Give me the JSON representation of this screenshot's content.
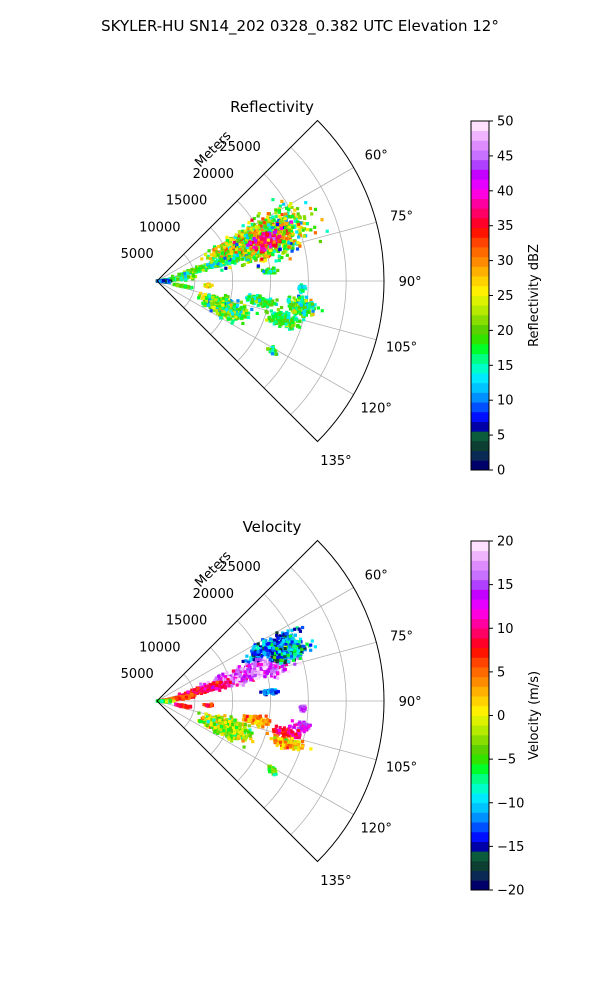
{
  "figure": {
    "suptitle": "SKYLER-HU  SN14_202  0328_0.382 UTC Elevation 12°"
  },
  "colors": {
    "grid": "#b0b0b0",
    "reflectivity_scale": [
      "#00006a",
      "#0a2a55",
      "#0d3e32",
      "#0b5c3d",
      "#0000a8",
      "#0010ff",
      "#0050ff",
      "#0090ff",
      "#00c4ff",
      "#00eaff",
      "#00ffc8",
      "#00ff82",
      "#00ff2a",
      "#30e400",
      "#5ad100",
      "#8add00",
      "#b6ea00",
      "#ddf200",
      "#fff000",
      "#ffd200",
      "#ffb000",
      "#ff8c00",
      "#ff6a00",
      "#ff4300",
      "#ff1400",
      "#ff0028",
      "#ff0064",
      "#ff00a0",
      "#ff00e0",
      "#e600ff",
      "#c400ff",
      "#b040ff",
      "#c870ff",
      "#dc8cff",
      "#f0b4ff",
      "#ffe0ff"
    ],
    "velocity_scale": [
      "#00006a",
      "#0a2a55",
      "#0d3e32",
      "#0b5c3d",
      "#0000a8",
      "#0010ff",
      "#0050ff",
      "#0090ff",
      "#00c4ff",
      "#00eaff",
      "#00ffc8",
      "#00ff82",
      "#00ff2a",
      "#30e400",
      "#5ad100",
      "#8add00",
      "#b6ea00",
      "#ddf200",
      "#fff000",
      "#ffd200",
      "#ffb000",
      "#ff8c00",
      "#ff6a00",
      "#ff4300",
      "#ff1400",
      "#ff0028",
      "#ff0064",
      "#ff00a0",
      "#ff00e0",
      "#e600ff",
      "#c400ff",
      "#b040ff",
      "#c870ff",
      "#dc8cff",
      "#f0b4ff",
      "#ffe0ff"
    ]
  },
  "chart_data": [
    {
      "type": "heatmap",
      "projection": "polar-sector",
      "title": "Reflectivity",
      "radial_label": "Meters",
      "radial_ticks": [
        5000,
        10000,
        15000,
        20000,
        25000
      ],
      "radial_tick_labels": [
        "5000",
        "10000",
        "15000",
        "20000",
        "25000"
      ],
      "rlim": [
        0,
        30000
      ],
      "theta_range_deg": [
        45,
        135
      ],
      "theta_ticks_deg": [
        60,
        75,
        90,
        105,
        120,
        135
      ],
      "theta_tick_labels": [
        "60°",
        "75°",
        "90°",
        "105°",
        "120°",
        "135°"
      ],
      "grid": true,
      "colorbar": {
        "label": "Reflectivity dBZ",
        "range": [
          0,
          50
        ],
        "ticks": [
          0,
          5,
          10,
          15,
          20,
          25,
          30,
          35,
          40,
          45,
          50
        ],
        "tick_labels": [
          "0",
          "5",
          "10",
          "15",
          "20",
          "25",
          "30",
          "35",
          "40",
          "45",
          "50"
        ]
      },
      "echoes": [
        {
          "az": 69,
          "range": 14500,
          "az_width": 14,
          "range_width": 9000,
          "value": 22,
          "spread": 6
        },
        {
          "az": 70,
          "range": 15500,
          "az_width": 5,
          "range_width": 3000,
          "value": 36,
          "spread": 4
        },
        {
          "az": 74,
          "range": 7500,
          "az_width": 4,
          "range_width": 6000,
          "value": 18,
          "spread": 4
        },
        {
          "az": 84,
          "range": 2600,
          "az_width": 5,
          "range_width": 3000,
          "value": 16,
          "spread": 4
        },
        {
          "az": 92,
          "range": 600,
          "az_width": 8,
          "range_width": 1500,
          "value": 8,
          "spread": 4
        },
        {
          "az": 95,
          "range": 6800,
          "az_width": 2,
          "range_width": 800,
          "value": 26,
          "spread": 4
        },
        {
          "az": 85,
          "range": 15000,
          "az_width": 2,
          "range_width": 1500,
          "value": 17,
          "spread": 3
        },
        {
          "az": 111,
          "range": 9700,
          "az_width": 10,
          "range_width": 4500,
          "value": 19,
          "spread": 5
        },
        {
          "az": 101,
          "range": 14000,
          "az_width": 4,
          "range_width": 2500,
          "value": 17,
          "spread": 3
        },
        {
          "az": 100,
          "range": 19500,
          "az_width": 5,
          "range_width": 3000,
          "value": 18,
          "spread": 4
        },
        {
          "az": 107,
          "range": 17500,
          "az_width": 4,
          "range_width": 3500,
          "value": 18,
          "spread": 3
        },
        {
          "az": 121,
          "range": 17800,
          "az_width": 2,
          "range_width": 1000,
          "value": 17,
          "spread": 3
        },
        {
          "az": 93,
          "range": 19300,
          "az_width": 2,
          "range_width": 700,
          "value": 16,
          "spread": 3
        },
        {
          "az": 101,
          "range": 3500,
          "az_width": 3,
          "range_width": 1500,
          "value": 19,
          "spread": 3
        }
      ]
    },
    {
      "type": "heatmap",
      "projection": "polar-sector",
      "title": "Velocity",
      "radial_label": "Meters",
      "radial_ticks": [
        5000,
        10000,
        15000,
        20000,
        25000
      ],
      "radial_tick_labels": [
        "5000",
        "10000",
        "15000",
        "20000",
        "25000"
      ],
      "rlim": [
        0,
        30000
      ],
      "theta_range_deg": [
        45,
        135
      ],
      "theta_ticks_deg": [
        60,
        75,
        90,
        105,
        120,
        135
      ],
      "theta_tick_labels": [
        "60°",
        "75°",
        "90°",
        "105°",
        "120°",
        "135°"
      ],
      "grid": true,
      "colorbar": {
        "label": "Velocity (m/s)",
        "range": [
          -20,
          20
        ],
        "ticks": [
          -20,
          -15,
          -10,
          -5,
          0,
          5,
          10,
          15,
          20
        ],
        "tick_labels": [
          "−20",
          "−15",
          "−10",
          "−5",
          "0",
          "5",
          "10",
          "15",
          "20"
        ]
      },
      "echoes": [
        {
          "az": 66,
          "range": 17000,
          "az_width": 7,
          "range_width": 5000,
          "value": -12,
          "spread": 3
        },
        {
          "az": 73,
          "range": 13000,
          "az_width": 7,
          "range_width": 8000,
          "value": 16,
          "spread": 3
        },
        {
          "az": 70,
          "range": 18500,
          "az_width": 5,
          "range_width": 4000,
          "value": -10,
          "spread": 4
        },
        {
          "az": 76,
          "range": 6500,
          "az_width": 5,
          "range_width": 4500,
          "value": 10,
          "spread": 2
        },
        {
          "az": 83,
          "range": 3000,
          "az_width": 5,
          "range_width": 2500,
          "value": 6,
          "spread": 2
        },
        {
          "az": 92,
          "range": 900,
          "az_width": 8,
          "range_width": 1500,
          "value": -5,
          "spread": 3
        },
        {
          "az": 95,
          "range": 6800,
          "az_width": 2,
          "range_width": 800,
          "value": 7,
          "spread": 2
        },
        {
          "az": 85,
          "range": 15000,
          "az_width": 2,
          "range_width": 1500,
          "value": -12,
          "spread": 2
        },
        {
          "az": 111,
          "range": 9700,
          "az_width": 10,
          "range_width": 4500,
          "value": -2,
          "spread": 3
        },
        {
          "az": 101,
          "range": 13500,
          "az_width": 4,
          "range_width": 2500,
          "value": 3,
          "spread": 2
        },
        {
          "az": 100,
          "range": 19500,
          "az_width": 3,
          "range_width": 2000,
          "value": 14,
          "spread": 2
        },
        {
          "az": 104,
          "range": 17700,
          "az_width": 3,
          "range_width": 2500,
          "value": 10,
          "spread": 2
        },
        {
          "az": 108,
          "range": 18000,
          "az_width": 3,
          "range_width": 3500,
          "value": 2,
          "spread": 3
        },
        {
          "az": 121,
          "range": 17800,
          "az_width": 2,
          "range_width": 1000,
          "value": -4,
          "spread": 2
        },
        {
          "az": 93,
          "range": 19300,
          "az_width": 2,
          "range_width": 700,
          "value": 14,
          "spread": 2
        },
        {
          "az": 101,
          "range": 3500,
          "az_width": 3,
          "range_width": 1500,
          "value": 8,
          "spread": 2
        }
      ]
    }
  ]
}
